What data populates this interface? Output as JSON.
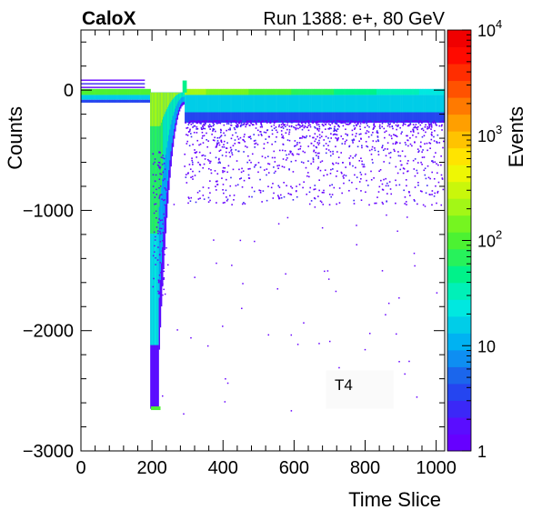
{
  "chart_data": {
    "type": "heatmap",
    "brand": "CaloX",
    "run_label": "Run 1388: e+, 80 GeV",
    "xlabel": "Time Slice",
    "ylabel": "Counts",
    "zlabel": "Events",
    "panel_label": "T4",
    "xlim": [
      0,
      1024
    ],
    "ylim": [
      -3000,
      500
    ],
    "zlim": [
      1,
      10000
    ],
    "z_scale": "log",
    "x_ticks": [
      0,
      200,
      400,
      600,
      800,
      1000
    ],
    "x_tick_labels": [
      "0",
      "200",
      "400",
      "600",
      "800",
      "1000"
    ],
    "y_ticks": [
      0,
      -1000,
      -2000,
      -3000
    ],
    "y_tick_labels": [
      "0",
      "−1000",
      "−2000",
      "−3000"
    ],
    "z_tick_labels": [
      {
        "value": 1,
        "base": "1",
        "exp": ""
      },
      {
        "value": 10,
        "base": "10",
        "exp": ""
      },
      {
        "value": 100,
        "base": "10",
        "exp": "2"
      },
      {
        "value": 1000,
        "base": "10",
        "exp": "3"
      },
      {
        "value": 10000,
        "base": "10",
        "exp": "4"
      }
    ],
    "palette": [
      "#6600ff",
      "#5a0dff",
      "#3b28f7",
      "#2545f0",
      "#1b66ec",
      "#0e8ef2",
      "#00b2f2",
      "#00cde8",
      "#00e8e0",
      "#00f0b8",
      "#00f28a",
      "#27f25b",
      "#4cf232",
      "#75f520",
      "#a3f716",
      "#c9f70b",
      "#eef704",
      "#ffe400",
      "#ffc300",
      "#ff9f00",
      "#ff7a00",
      "#ff5200",
      "#ff2d00",
      "#ff0a00",
      "#f00000"
    ],
    "features": {
      "baseline_y": -20,
      "pulse_start_x": 195,
      "pulse_min_x": 210,
      "pulse_min_y": -2650,
      "recovery_end_x": 290,
      "overshoot_x": 290,
      "overshoot_y": 80,
      "band_color_levels": "yellow-green at baseline, cyan/blue tails"
    }
  }
}
